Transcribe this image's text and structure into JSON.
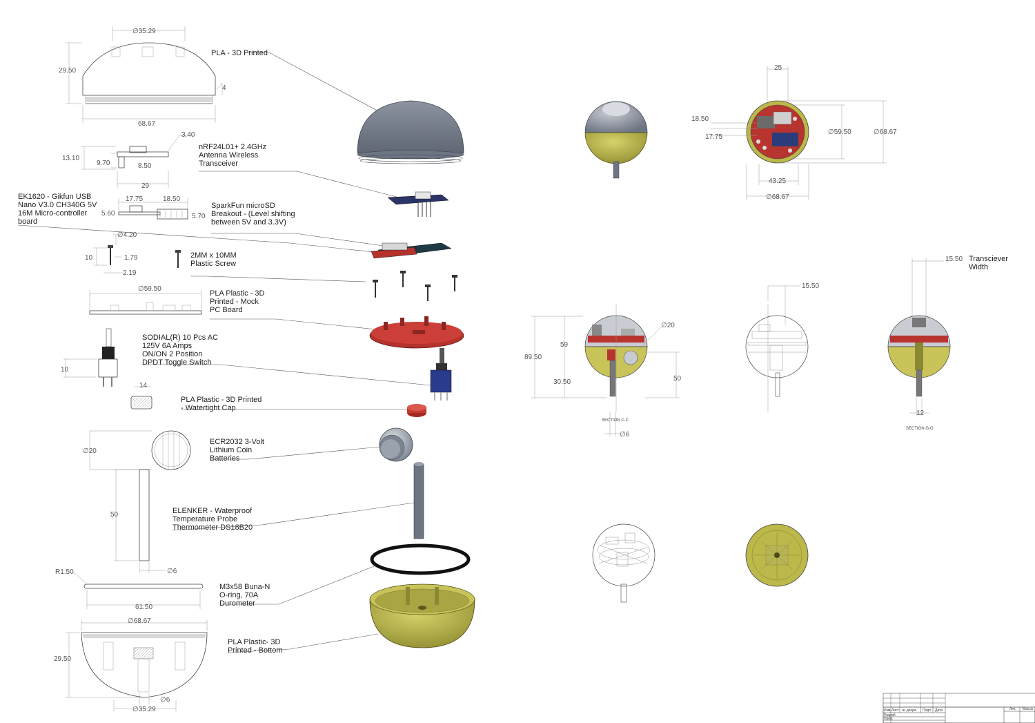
{
  "parts": [
    {
      "id": "top",
      "lines": [
        "PLA - 3D Printed"
      ]
    },
    {
      "id": "nrf",
      "lines": [
        "nRF24L01+ 2.4GHz",
        "Antenna Wireless",
        "Transceiver"
      ]
    },
    {
      "id": "nano",
      "lines": [
        "EK1620 - Gikfun USB",
        "Nano V3.0 CH340G 5V",
        "16M Micro-controller",
        "board"
      ]
    },
    {
      "id": "sd",
      "lines": [
        "SparkFun microSD",
        "Breakout - (Level shifting",
        "between 5V and 3.3V)"
      ]
    },
    {
      "id": "screw",
      "lines": [
        "2MM x 10MM",
        "Plastic Screw"
      ]
    },
    {
      "id": "pcb",
      "lines": [
        "PLA Plastic - 3D",
        "Printed - Mock",
        "PC Board"
      ]
    },
    {
      "id": "switch",
      "lines": [
        "SODIAL(R) 10 Pcs AC",
        "125V 6A Amps",
        "ON/ON 2 Position",
        "DPDT Toggle Switch"
      ]
    },
    {
      "id": "cap",
      "lines": [
        "PLA Plastic - 3D Printed",
        "- Watertight Cap"
      ]
    },
    {
      "id": "battery",
      "lines": [
        "ECR2032 3-Volt",
        "Lithium Coin",
        "Batteries"
      ]
    },
    {
      "id": "probe",
      "lines": [
        "ELENKER - Waterproof",
        "Temperature Probe",
        "Thermometer DS18B20"
      ]
    },
    {
      "id": "oring",
      "lines": [
        "M3x58 Buna-N",
        "O-ring, 70A",
        "Durometer"
      ]
    },
    {
      "id": "bottom",
      "lines": [
        "PLA Plastic- 3D",
        "Printed - Bottom"
      ]
    }
  ],
  "dims": {
    "top_d": "∅35.29",
    "top_h": "29.50",
    "top_w": "68.67",
    "top_t": "4",
    "nrf_a": "3.40",
    "nrf_h": "13.10",
    "nrf_b": "9.70",
    "nrf_c": "8.50",
    "nrf_w": "29",
    "nano_a": "17.75",
    "nano_b": "18.50",
    "nano_c": "5.60",
    "nano_d": "5.70",
    "scr_d": "∅4.20",
    "scr_l": "10",
    "scr_a": "1.79",
    "scr_b": "2.19",
    "pcb_d": "∅59.50",
    "sw_h": "10",
    "cap_w": "14",
    "bat_d": "∅20",
    "probe_l": "50",
    "probe_d": "∅6",
    "or_r": "R1.50",
    "or_w": "61.50",
    "bot_d": "∅68.67",
    "bot_h": "29.50",
    "bot_d2": "∅6",
    "bot_d3": "∅35.29",
    "tv_25": "25",
    "tv_1850": "18.50",
    "tv_1775": "17.75",
    "tv_5950": "∅59.50",
    "tv_6867": "∅68.67",
    "tv_4325": "43.25",
    "tv_6867b": "∅68.67",
    "s_8950": "89.50",
    "s_59": "59",
    "s_3050": "30.50",
    "s_d20": "∅20",
    "s_50": "50",
    "s_d6": "∅6",
    "s_1550": "15.50",
    "s_1550b": "15.50",
    "s_tw1": "Transciever",
    "s_tw2": "Width",
    "s_12": "12"
  },
  "sections": {
    "cc": "SECTION C-C",
    "gg": "SECTION G-G"
  },
  "title_block": {
    "r1": [
      "Изм.",
      "Лист",
      "№ докум.",
      "Подп.",
      "Дата"
    ],
    "r2": "Разраб.",
    "r3": "Пров.",
    "lit": "Лит.",
    "mass": "Масса"
  },
  "colors": {
    "top_gray": "#7b8290",
    "pcb_red": "#b5322d",
    "bottom_olive": "#b9b44a",
    "nano_blue": "#2f3a6a",
    "switch_blue": "#2a3a8c"
  }
}
